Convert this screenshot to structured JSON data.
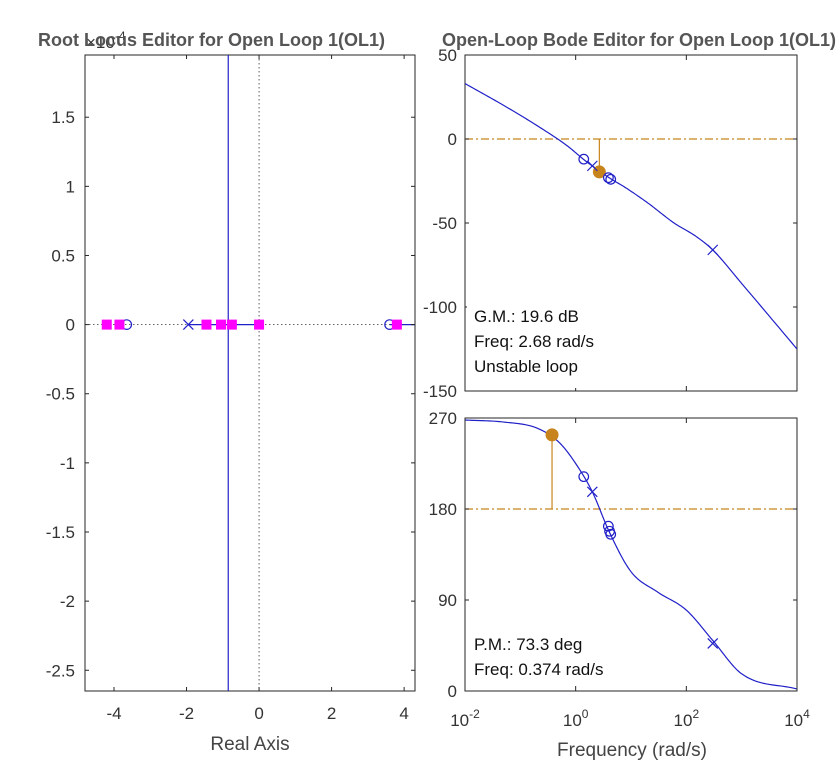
{
  "chart_data": [
    {
      "type": "scatter",
      "title": "Root Locus Editor for Open Loop 1(OL1)",
      "xlabel": "Real Axis",
      "ylabel": "",
      "axis_exponent": "×10^-4",
      "xlim": [
        -4.8,
        4.3
      ],
      "ylim": [
        -2.65,
        1.95
      ],
      "xticks": [
        -4,
        -2,
        0,
        2,
        4
      ],
      "yticks": [
        -2.5,
        -2,
        -1.5,
        -1,
        -0.5,
        0,
        0.5,
        1,
        1.5
      ],
      "grid": false,
      "zero_lines": true,
      "locus_segments": [
        [
          -1.95,
          0,
          0,
          0
        ],
        [
          3.6,
          0,
          4.3,
          0
        ]
      ],
      "vertical_branch_x": -0.85,
      "poles": [
        {
          "x": -1.95,
          "y": 0
        }
      ],
      "zeros": [
        {
          "x": -3.65,
          "y": 0
        },
        {
          "x": 3.6,
          "y": 0
        }
      ],
      "closed_loop_poles": [
        {
          "x": -4.2,
          "y": 0
        },
        {
          "x": -3.85,
          "y": 0
        },
        {
          "x": -1.45,
          "y": 0
        },
        {
          "x": -1.05,
          "y": 0
        },
        {
          "x": -0.75,
          "y": 0
        },
        {
          "x": 0,
          "y": 0
        },
        {
          "x": 3.8,
          "y": 0
        }
      ],
      "colors": {
        "locus": "#2020c8",
        "closed_loop": "#ff00ff"
      }
    },
    {
      "type": "line",
      "title": "Open-Loop Bode Editor for Open Loop 1(OL1)",
      "xlabel": "Frequency (rad/s)",
      "x_scale": "log",
      "xlim": [
        0.01,
        10000
      ],
      "xtick_labels": [
        "10^-2",
        "10^0",
        "10^2",
        "10^4"
      ],
      "panels": [
        {
          "name": "magnitude",
          "ylim": [
            -150,
            50
          ],
          "yticks": [
            50,
            0,
            -50,
            -100,
            -150
          ],
          "series": [
            {
              "x": [
                0.01,
                0.05,
                0.2,
                0.7,
                1.5,
                2.7,
                4,
                8,
                20,
                60,
                150,
                300,
                1000,
                10000
              ],
              "y": [
                33,
                20,
                8,
                -4,
                -13,
                -19,
                -23,
                -29,
                -38,
                -50,
                -58,
                -66,
                -86,
                -125
              ]
            }
          ],
          "reference_line": 0,
          "margin_marker": {
            "x": 2.68,
            "y": -19.6
          },
          "poles": [
            {
              "x": 2,
              "y": -16
            },
            {
              "x": 300,
              "y": -66
            }
          ],
          "zeros": [
            {
              "x": 1.4,
              "y": -12
            },
            {
              "x": 3.9,
              "y": -23
            },
            {
              "x": 4.3,
              "y": -24
            }
          ],
          "info": [
            "G.M.: 19.6 dB",
            "Freq: 2.68 rad/s",
            "Unstable loop"
          ]
        },
        {
          "name": "phase",
          "ylim": [
            0,
            270
          ],
          "yticks": [
            270,
            180,
            90,
            0
          ],
          "series": [
            {
              "x": [
                0.01,
                0.05,
                0.2,
                0.5,
                1,
                2,
                4,
                10,
                30,
                100,
                300,
                1000,
                10000
              ],
              "y": [
                268,
                266,
                260,
                246,
                225,
                197,
                158,
                118,
                98,
                80,
                50,
                17,
                2
              ]
            }
          ],
          "reference_line": 180,
          "margin_marker": {
            "x": 0.374,
            "y": 253.3
          },
          "poles": [
            {
              "x": 2,
              "y": 197
            },
            {
              "x": 300,
              "y": 47
            }
          ],
          "zeros": [
            {
              "x": 1.4,
              "y": 212
            },
            {
              "x": 3.9,
              "y": 163
            },
            {
              "x": 4.1,
              "y": 158
            },
            {
              "x": 4.3,
              "y": 155
            }
          ],
          "info": [
            "P.M.: 73.3 deg",
            "Freq: 0.374 rad/s"
          ]
        }
      ],
      "colors": {
        "curve": "#2020c8",
        "margin": "#c8841c"
      }
    }
  ]
}
